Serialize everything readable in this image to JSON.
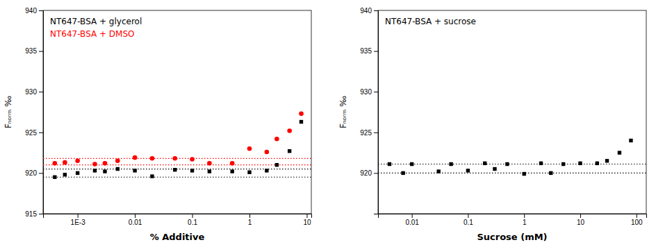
{
  "chart_data": [
    {
      "type": "scatter",
      "xlabel": "% Additive",
      "ylabel": "Fₙₒᵣₘ ‰",
      "log": "x",
      "legend": "upper left",
      "xlim": [
        0.00025,
        12.0
      ],
      "xticks": [
        {
          "value": 0.001,
          "label": "1E-3"
        },
        0.01,
        0.1,
        1,
        10
      ],
      "ylim": [
        915,
        940
      ],
      "yticks": [
        915,
        920,
        925,
        930,
        935,
        940
      ],
      "series": [
        {
          "name": "NT647-BSA + glycerol",
          "color": "black",
          "marker": "square",
          "x": [
            0.0004,
            0.0006,
            0.001,
            0.002,
            0.003,
            0.005,
            0.01,
            0.02,
            0.05,
            0.1,
            0.2,
            0.5,
            1.0,
            2.0,
            3.0,
            5.0,
            8.0
          ],
          "values": [
            919.5,
            919.8,
            920.0,
            920.3,
            920.2,
            920.5,
            920.3,
            919.6,
            920.4,
            920.3,
            920.2,
            920.2,
            920.1,
            920.3,
            921.0,
            922.7,
            926.3
          ],
          "hlines": [
            920.5,
            919.5
          ]
        },
        {
          "name": "NT647-BSA + DMSO",
          "color": "red",
          "marker": "circle",
          "x": [
            0.0004,
            0.0006,
            0.001,
            0.002,
            0.003,
            0.005,
            0.01,
            0.02,
            0.05,
            0.1,
            0.2,
            0.5,
            1.0,
            2.0,
            3.0,
            5.0,
            8.0
          ],
          "values": [
            921.2,
            921.3,
            921.5,
            921.1,
            921.2,
            921.5,
            921.9,
            921.8,
            921.8,
            921.7,
            921.2,
            921.2,
            923.0,
            922.6,
            924.2,
            925.2,
            927.3
          ],
          "hlines": [
            921.8,
            921.0
          ]
        }
      ]
    },
    {
      "type": "scatter",
      "xlabel": "Sucrose (mM)",
      "ylabel": "Fₙₒᵣₘ ‰",
      "log": "x",
      "legend": "upper left",
      "xlim": [
        0.0025,
        150.0
      ],
      "xticks": [
        0.01,
        0.1,
        1,
        10,
        100
      ],
      "ylim": [
        915,
        940
      ],
      "yticks": [
        920,
        925,
        930,
        935,
        940
      ],
      "series": [
        {
          "name": "NT647-BSA + sucrose",
          "color": "black",
          "marker": "square",
          "x": [
            0.004,
            0.007,
            0.01,
            0.03,
            0.05,
            0.1,
            0.2,
            0.3,
            0.5,
            1.0,
            2.0,
            3.0,
            5.0,
            10.0,
            20.0,
            30.0,
            50.0,
            80.0
          ],
          "values": [
            921.1,
            920.0,
            921.1,
            920.2,
            921.1,
            920.3,
            921.2,
            920.5,
            921.1,
            919.9,
            921.2,
            920.0,
            921.1,
            921.2,
            921.2,
            921.5,
            922.5,
            924.0
          ],
          "hlines": [
            921.1,
            920.0
          ]
        }
      ]
    }
  ]
}
